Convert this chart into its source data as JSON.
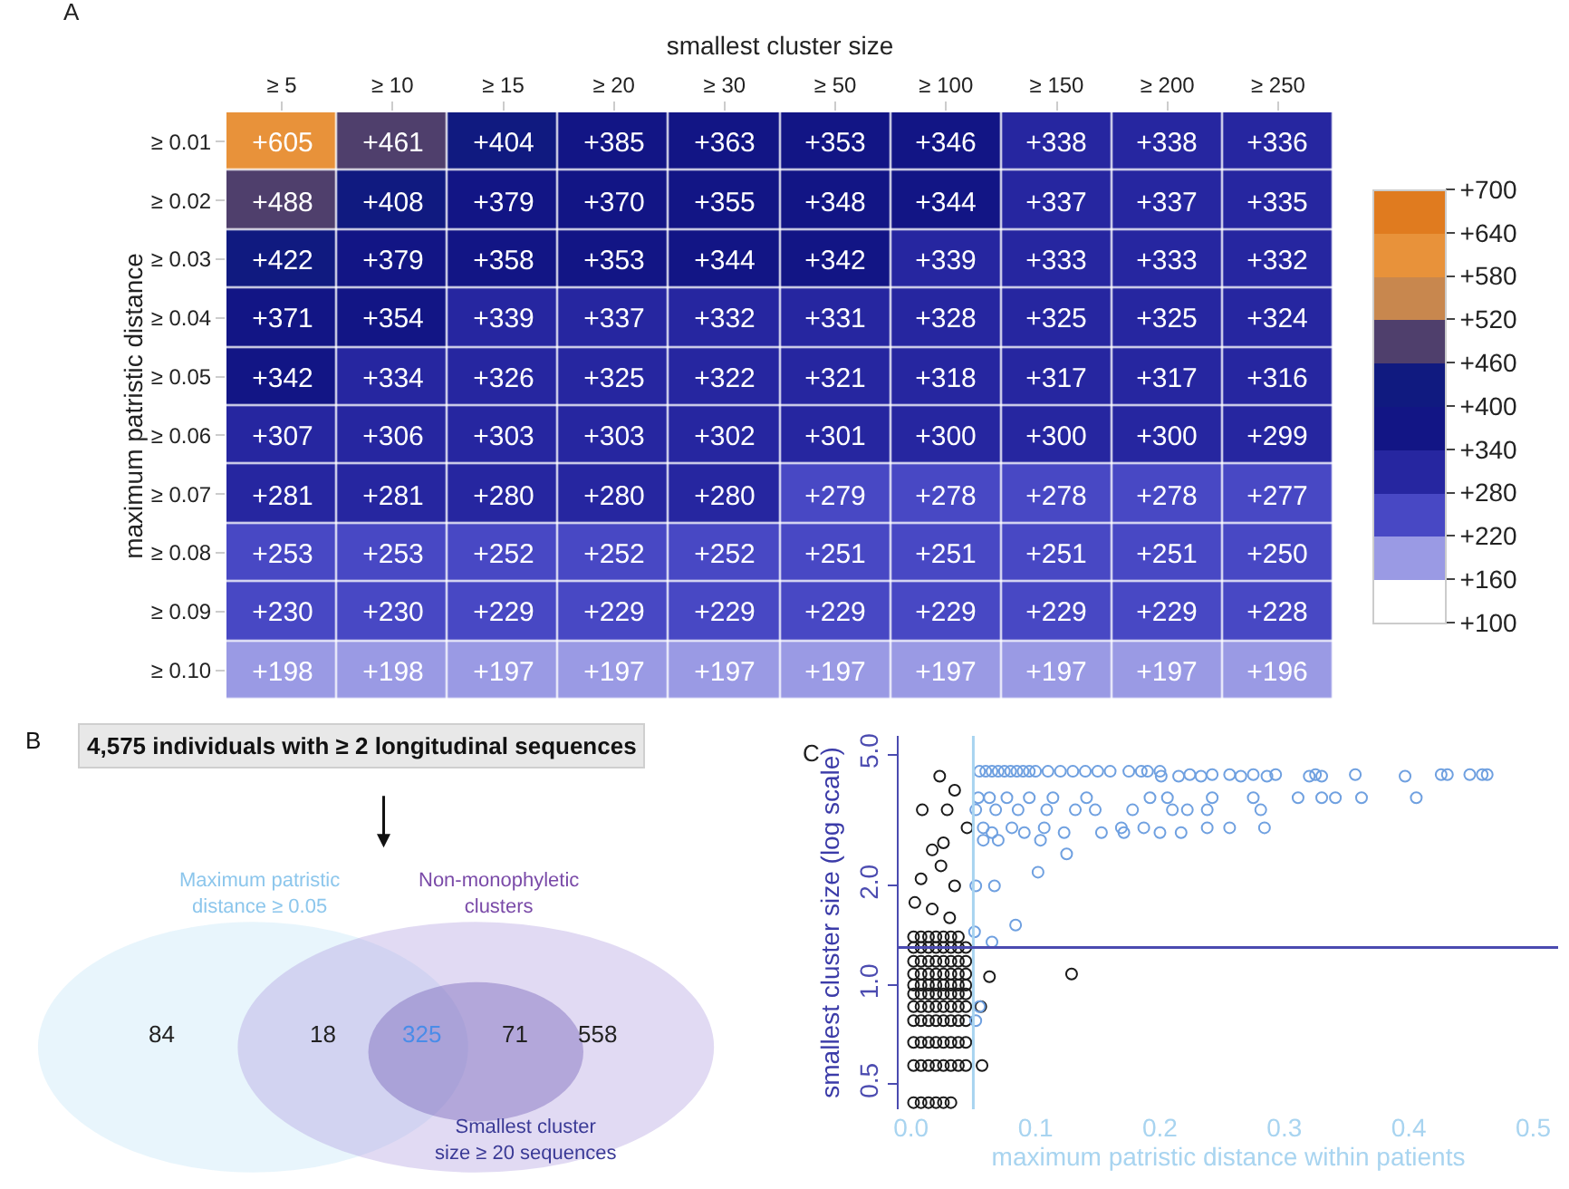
{
  "chart_data": [
    {
      "type": "heatmap",
      "xlabel": "smallest cluster size",
      "ylabel": "maximum patristic distance",
      "annotations": [
        "A"
      ],
      "categories": [
        "≥ 5",
        "≥ 10",
        "≥ 15",
        "≥ 20",
        "≥ 30",
        "≥ 50",
        "≥ 100",
        "≥ 150",
        "≥ 200",
        "≥ 250"
      ],
      "y_categories": [
        "≥ 0.01",
        "≥ 0.02",
        "≥ 0.03",
        "≥ 0.04",
        "≥ 0.05",
        "≥ 0.06",
        "≥ 0.07",
        "≥ 0.08",
        "≥ 0.09",
        "≥ 0.10"
      ],
      "cells": [
        [
          605,
          461,
          404,
          385,
          363,
          353,
          346,
          338,
          338,
          336
        ],
        [
          488,
          408,
          379,
          370,
          355,
          348,
          344,
          337,
          337,
          335
        ],
        [
          422,
          379,
          358,
          353,
          344,
          342,
          339,
          333,
          333,
          332
        ],
        [
          371,
          354,
          339,
          337,
          332,
          331,
          328,
          325,
          325,
          324
        ],
        [
          342,
          334,
          326,
          325,
          322,
          321,
          318,
          317,
          317,
          316
        ],
        [
          307,
          306,
          303,
          303,
          302,
          301,
          300,
          300,
          300,
          299
        ],
        [
          281,
          281,
          280,
          280,
          280,
          279,
          278,
          278,
          278,
          277
        ],
        [
          253,
          253,
          252,
          252,
          252,
          251,
          251,
          251,
          251,
          250
        ],
        [
          230,
          230,
          229,
          229,
          229,
          229,
          229,
          229,
          229,
          228
        ],
        [
          198,
          198,
          197,
          197,
          197,
          197,
          197,
          197,
          197,
          196
        ]
      ],
      "cell_labels": [
        [
          "+605",
          "+461",
          "+404",
          "+385",
          "+363",
          "+353",
          "+346",
          "+338",
          "+338",
          "+336"
        ],
        [
          "+488",
          "+408",
          "+379",
          "+370",
          "+355",
          "+348",
          "+344",
          "+337",
          "+337",
          "+335"
        ],
        [
          "+422",
          "+379",
          "+358",
          "+353",
          "+344",
          "+342",
          "+339",
          "+333",
          "+333",
          "+332"
        ],
        [
          "+371",
          "+354",
          "+339",
          "+337",
          "+332",
          "+331",
          "+328",
          "+325",
          "+325",
          "+324"
        ],
        [
          "+342",
          "+334",
          "+326",
          "+325",
          "+322",
          "+321",
          "+318",
          "+317",
          "+317",
          "+316"
        ],
        [
          "+307",
          "+306",
          "+303",
          "+303",
          "+302",
          "+301",
          "+300",
          "+300",
          "+300",
          "+299"
        ],
        [
          "+281",
          "+281",
          "+280",
          "+280",
          "+280",
          "+279",
          "+278",
          "+278",
          "+278",
          "+277"
        ],
        [
          "+253",
          "+253",
          "+252",
          "+252",
          "+252",
          "+251",
          "+251",
          "+251",
          "+251",
          "+250"
        ],
        [
          "+230",
          "+230",
          "+229",
          "+229",
          "+229",
          "+229",
          "+229",
          "+229",
          "+229",
          "+228"
        ],
        [
          "+198",
          "+198",
          "+197",
          "+197",
          "+197",
          "+197",
          "+197",
          "+197",
          "+197",
          "+196"
        ]
      ],
      "clim": [
        100,
        700
      ],
      "colors": [
        "#ffffff",
        "#9a9ae4",
        "#4848c4",
        "#2626a0",
        "#121585",
        "#101a80",
        "#4f3f6c",
        "#c8874e",
        "#e8923a",
        "#e07b1f"
      ],
      "cticks": [
        {
          "value": 100,
          "label": "+100"
        },
        {
          "value": 160,
          "label": "+160"
        },
        {
          "value": 220,
          "label": "+220"
        },
        {
          "value": 280,
          "label": "+280"
        },
        {
          "value": 340,
          "label": "+340"
        },
        {
          "value": 400,
          "label": "+400"
        },
        {
          "value": 460,
          "label": "+460"
        },
        {
          "value": 520,
          "label": "+520"
        },
        {
          "value": 580,
          "label": "+580"
        },
        {
          "value": 640,
          "label": "+640"
        },
        {
          "value": 700,
          "label": "+700"
        }
      ]
    },
    {
      "type": "other",
      "title": "4,575 individuals with ≥ 2 longitudinal sequences",
      "annotations": [
        "B",
        "Maximum patristic\ndistance ≥ 0.05",
        "Non-monophyletic\nclusters",
        "Smallest cluster\nsize ≥ 20 sequences"
      ],
      "categories": [
        null,
        null,
        null,
        null,
        null
      ],
      "values": [
        84,
        18,
        325,
        71,
        558
      ],
      "data_labels": true,
      "colors": [
        "#222222",
        "#222222",
        "#4a8ce8",
        "#222222",
        "#222222"
      ]
    },
    {
      "type": "scatter",
      "xlabel": "maximum patristic distance within patients",
      "ylabel": "smallest cluster size (log scale)",
      "annotations": [
        "C"
      ],
      "log": "y",
      "marker": "circle",
      "grid": false,
      "xlim": [
        -0.01,
        0.52
      ],
      "xticks": [
        {
          "value": 0,
          "label": "0.0"
        },
        0.1,
        0.2,
        0.3,
        0.4,
        0.5
      ],
      "ylim": [
        0.42,
        5.7
      ],
      "yticks": [
        {
          "value": 0.5,
          "label": "0.5"
        },
        {
          "value": 1,
          "label": "1.0"
        },
        {
          "value": 2,
          "label": "2.0"
        },
        {
          "value": 5,
          "label": "5.0"
        }
      ],
      "ref_lines": [
        {
          "axis": "x",
          "value": 0.05,
          "color": "#a8d4f0"
        },
        {
          "axis": "y",
          "value": 1.3,
          "color": "#4b4bb0"
        }
      ],
      "series": [
        {
          "color": "#1a1a1a",
          "x": [
            0.002,
            0.008,
            0.014,
            0.02,
            0.026,
            0.032,
            0.002,
            0.008,
            0.014,
            0.02,
            0.026,
            0.032,
            0.038,
            0.044,
            0.002,
            0.008,
            0.014,
            0.02,
            0.026,
            0.032,
            0.038,
            0.044,
            0.002,
            0.008,
            0.014,
            0.02,
            0.026,
            0.032,
            0.038,
            0.044,
            0.002,
            0.008,
            0.014,
            0.02,
            0.026,
            0.032,
            0.038,
            0.044,
            0.002,
            0.008,
            0.014,
            0.02,
            0.026,
            0.032,
            0.038,
            0.044,
            0.002,
            0.008,
            0.014,
            0.02,
            0.026,
            0.032,
            0.038,
            0.044,
            0.002,
            0.008,
            0.014,
            0.02,
            0.026,
            0.032,
            0.038,
            0.044,
            0.002,
            0.008,
            0.014,
            0.02,
            0.026,
            0.032,
            0.038,
            0.044,
            0.002,
            0.008,
            0.014,
            0.02,
            0.026,
            0.032,
            0.038,
            0.044,
            0.002,
            0.008,
            0.014,
            0.02,
            0.026,
            0.032,
            0.038,
            0.023,
            0.009,
            0.035,
            0.029,
            0.026,
            0.017,
            0.008,
            0.024,
            0.035,
            0.003,
            0.017,
            0.031,
            0.129,
            0.057,
            0.063,
            0.056,
            0.045
          ],
          "values": [
            0.44,
            0.44,
            0.44,
            0.44,
            0.44,
            0.44,
            0.57,
            0.57,
            0.57,
            0.57,
            0.57,
            0.57,
            0.57,
            0.57,
            0.67,
            0.67,
            0.67,
            0.67,
            0.67,
            0.67,
            0.67,
            0.67,
            0.78,
            0.78,
            0.78,
            0.78,
            0.78,
            0.78,
            0.78,
            0.78,
            0.86,
            0.86,
            0.86,
            0.86,
            0.86,
            0.86,
            0.86,
            0.86,
            0.94,
            0.94,
            0.94,
            0.94,
            0.94,
            0.94,
            0.94,
            0.94,
            1.0,
            1.0,
            1.0,
            1.0,
            1.0,
            1.0,
            1.0,
            1.0,
            1.08,
            1.08,
            1.08,
            1.08,
            1.08,
            1.08,
            1.08,
            1.08,
            1.18,
            1.18,
            1.18,
            1.18,
            1.18,
            1.18,
            1.18,
            1.18,
            1.3,
            1.3,
            1.3,
            1.3,
            1.3,
            1.3,
            1.3,
            1.3,
            1.4,
            1.4,
            1.4,
            1.4,
            1.4,
            1.4,
            1.4,
            4.3,
            3.4,
            3.9,
            3.4,
            2.7,
            2.57,
            2.1,
            2.3,
            2.0,
            1.78,
            1.7,
            1.6,
            1.08,
            0.57,
            1.06,
            0.86,
            3.0
          ]
        },
        {
          "color": "#6fa0e0",
          "x": [
            0.055,
            0.06,
            0.065,
            0.07,
            0.075,
            0.08,
            0.085,
            0.09,
            0.095,
            0.1,
            0.11,
            0.12,
            0.13,
            0.14,
            0.15,
            0.16,
            0.175,
            0.185,
            0.19,
            0.2,
            0.224,
            0.242,
            0.256,
            0.275,
            0.293,
            0.325,
            0.357,
            0.426,
            0.431,
            0.449,
            0.459,
            0.463,
            0.201,
            0.215,
            0.233,
            0.265,
            0.286,
            0.32,
            0.33,
            0.397,
            0.054,
            0.063,
            0.077,
            0.095,
            0.114,
            0.141,
            0.192,
            0.206,
            0.242,
            0.275,
            0.311,
            0.33,
            0.341,
            0.362,
            0.406,
            0.052,
            0.068,
            0.086,
            0.109,
            0.132,
            0.148,
            0.178,
            0.21,
            0.222,
            0.238,
            0.281,
            0.058,
            0.081,
            0.107,
            0.169,
            0.187,
            0.238,
            0.256,
            0.284,
            0.065,
            0.091,
            0.123,
            0.153,
            0.171,
            0.2,
            0.217,
            0.058,
            0.07,
            0.104,
            0.125,
            0.102,
            0.052,
            0.067,
            0.084,
            0.051,
            0.065,
            0.052,
            0.055
          ],
          "values": [
            4.45,
            4.45,
            4.45,
            4.45,
            4.45,
            4.45,
            4.45,
            4.45,
            4.45,
            4.45,
            4.45,
            4.45,
            4.45,
            4.45,
            4.45,
            4.45,
            4.45,
            4.45,
            4.45,
            4.45,
            4.35,
            4.35,
            4.35,
            4.35,
            4.35,
            4.35,
            4.35,
            4.35,
            4.35,
            4.35,
            4.35,
            4.35,
            4.3,
            4.3,
            4.3,
            4.3,
            4.3,
            4.3,
            4.3,
            4.3,
            3.7,
            3.7,
            3.7,
            3.7,
            3.7,
            3.7,
            3.7,
            3.7,
            3.7,
            3.7,
            3.7,
            3.7,
            3.7,
            3.7,
            3.7,
            3.4,
            3.4,
            3.4,
            3.4,
            3.4,
            3.4,
            3.4,
            3.4,
            3.4,
            3.4,
            3.4,
            3.0,
            3.0,
            3.0,
            3.0,
            3.0,
            3.0,
            3.0,
            3.0,
            2.9,
            2.9,
            2.9,
            2.9,
            2.9,
            2.9,
            2.9,
            2.75,
            2.75,
            2.75,
            2.5,
            2.2,
            2.0,
            2.0,
            1.52,
            1.45,
            1.35,
            0.78,
            0.86
          ]
        }
      ]
    }
  ]
}
